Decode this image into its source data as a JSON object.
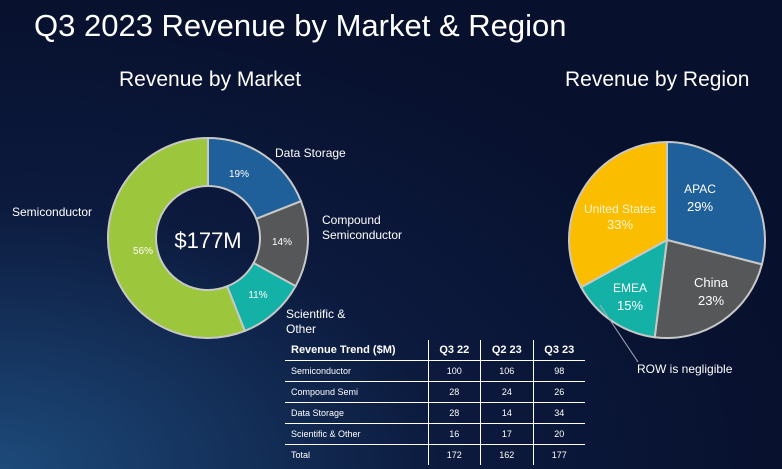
{
  "title": "Q3 2023 Revenue by Market & Region",
  "chart_data": [
    {
      "type": "pie",
      "variant": "donut",
      "title": "Revenue by Market",
      "center_label": "$177M",
      "categories": [
        "Data Storage",
        "Compound Semiconductor",
        "Scientific & Other",
        "Semiconductor"
      ],
      "values": [
        19,
        14,
        11,
        56
      ],
      "value_labels": [
        "19%",
        "14%",
        "11%",
        "56%"
      ],
      "colors": [
        "#1f5f9a",
        "#555759",
        "#14b2a6",
        "#9cc63b"
      ]
    },
    {
      "type": "pie",
      "title": "Revenue by Region",
      "categories": [
        "APAC",
        "China",
        "EMEA",
        "United States"
      ],
      "values": [
        29,
        23,
        15,
        33
      ],
      "value_labels": [
        "29%",
        "23%",
        "15%",
        "33%"
      ],
      "colors": [
        "#1f5f9a",
        "#555759",
        "#14b2a6",
        "#fbbd00"
      ],
      "annotation": "ROW is negligible"
    },
    {
      "type": "table",
      "title": "Revenue Trend ($M)",
      "columns": [
        "Revenue Trend ($M)",
        "Q3 22",
        "Q2 23",
        "Q3 23"
      ],
      "rows": [
        [
          "Semiconductor",
          "100",
          "106",
          "98"
        ],
        [
          "Compound Semi",
          "28",
          "24",
          "26"
        ],
        [
          "Data Storage",
          "28",
          "14",
          "34"
        ],
        [
          "Scientific & Other",
          "16",
          "17",
          "20"
        ],
        [
          "Total",
          "172",
          "162",
          "177"
        ]
      ]
    }
  ]
}
